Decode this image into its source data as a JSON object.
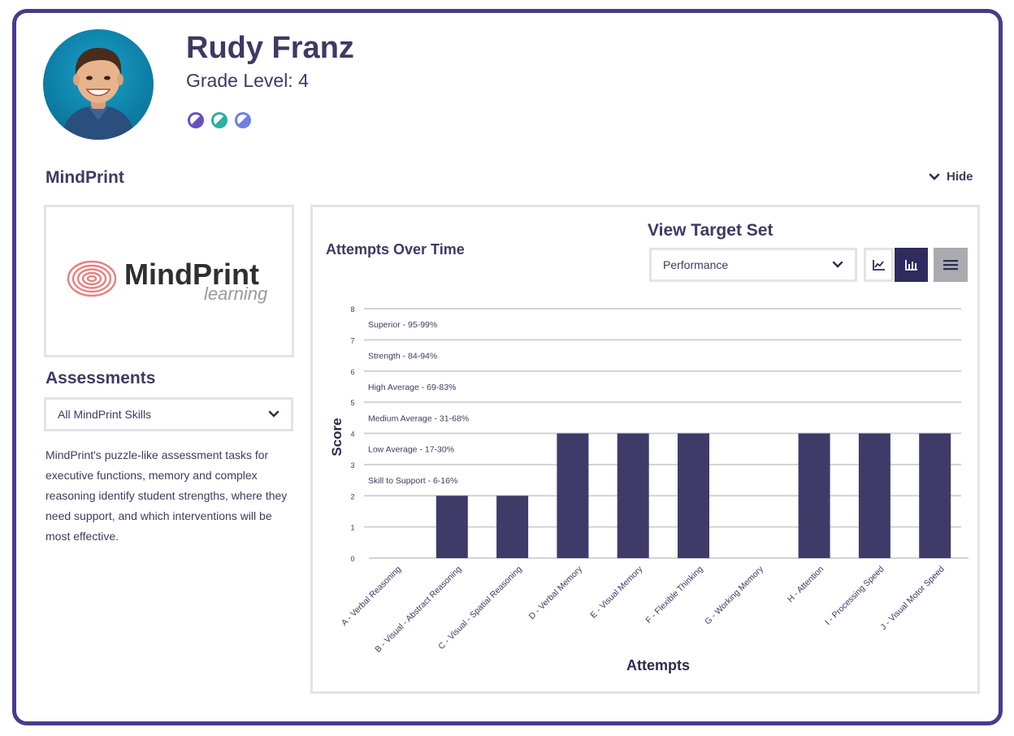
{
  "profile": {
    "name": "Rudy Franz",
    "grade_label": "Grade Level: 4",
    "badge_colors": [
      "#6a4fc4",
      "#2bb0a4",
      "#6f7fe0"
    ]
  },
  "section": {
    "title": "MindPrint",
    "hide_label": "Hide"
  },
  "logo": {
    "brand": "MindPrint",
    "tagline": "learning"
  },
  "assessments": {
    "title": "Assessments",
    "selected": "All MindPrint Skills",
    "description": "MindPrint's puzzle-like assessment tasks for executive functions, memory and complex reasoning identify student strengths, where they need support, and which interventions will be most effective."
  },
  "chart_panel": {
    "title": "Attempts Over Time",
    "target_title": "View Target Set",
    "target_selected": "Performance",
    "view_buttons": [
      "line-chart-icon",
      "bar-chart-icon",
      "menu-icon"
    ]
  },
  "chart_data": {
    "type": "bar",
    "xlabel": "Attempts",
    "ylabel": "Score",
    "ylim": [
      0,
      8
    ],
    "yticks": [
      "0",
      "1",
      "2",
      "3",
      "4",
      "5",
      "6",
      "7",
      "8"
    ],
    "categories": [
      "A - Verbal Reasoning",
      "B - Visual - Abstract Reasoning",
      "C - Visual - Spatial Reasoning",
      "D - Verbal Memory",
      "E - Visual Memory",
      "F - Flexible Thinking",
      "G - Working Memory",
      "H - Attention",
      "I - Processing Speed",
      "J - Visual Motor Speed"
    ],
    "values": [
      0,
      2,
      2,
      4,
      4,
      4,
      0,
      4,
      4,
      4
    ],
    "bar_color": "#3f3b68",
    "bands": [
      {
        "label": "Skill to Support - 6-16%",
        "y": 2
      },
      {
        "label": "Low Average - 17-30%",
        "y": 3
      },
      {
        "label": "Medium Average - 31-68%",
        "y": 4
      },
      {
        "label": "High Average - 69-83%",
        "y": 5
      },
      {
        "label": "Strength - 84-94%",
        "y": 6
      },
      {
        "label": "Superior - 95-99%",
        "y": 7
      }
    ],
    "grid": true
  }
}
